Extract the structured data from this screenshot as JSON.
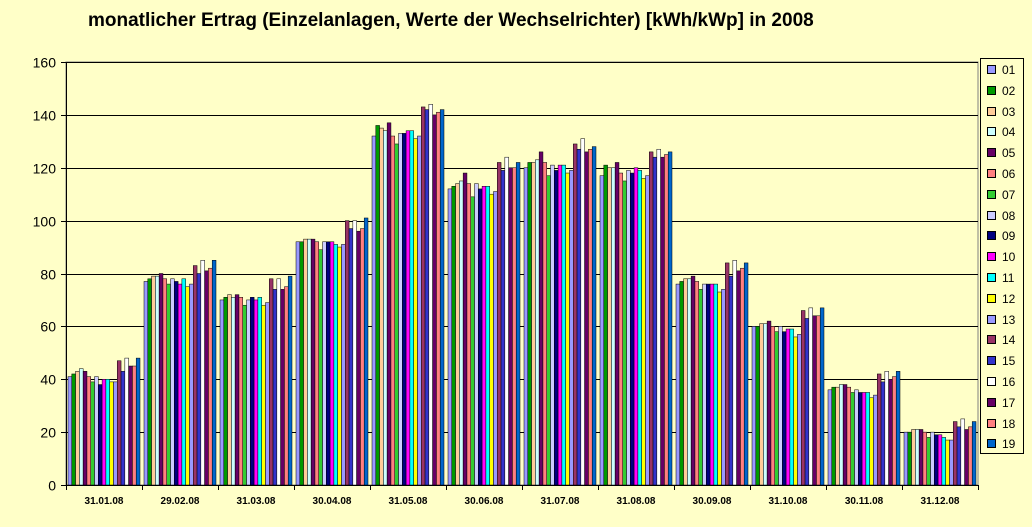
{
  "chart_data": {
    "type": "bar",
    "title": "monatlicher Ertrag (Einzelanlagen, Werte der Wechselrichter) [kWh/kWp] in 2008",
    "xlabel": "",
    "ylabel": "",
    "ylim": [
      0,
      160
    ],
    "yticks": [
      "0",
      "20",
      "40",
      "60",
      "80",
      "100",
      "120",
      "140",
      "160"
    ],
    "grid": true,
    "legend_position": "right",
    "categories": [
      "31.01.08",
      "29.02.08",
      "31.03.08",
      "30.04.08",
      "31.05.08",
      "30.06.08",
      "31.07.08",
      "31.08.08",
      "30.09.08",
      "31.10.08",
      "30.11.08",
      "31.12.08"
    ],
    "series": [
      {
        "name": "01",
        "color": "#9999ff",
        "values": [
          41,
          77,
          70,
          92,
          132,
          112,
          120,
          117,
          76,
          60,
          36,
          20
        ]
      },
      {
        "name": "02",
        "color": "#009900",
        "values": [
          42,
          78,
          71,
          92,
          136,
          113,
          122,
          121,
          77,
          60,
          37,
          20
        ]
      },
      {
        "name": "03",
        "color": "#ffcc99",
        "values": [
          43,
          79,
          72,
          93,
          135,
          114,
          122,
          120,
          78,
          61,
          37,
          21
        ]
      },
      {
        "name": "04",
        "color": "#ccffff",
        "values": [
          44,
          79,
          71,
          93,
          134,
          115,
          123,
          120,
          78,
          61,
          38,
          21
        ]
      },
      {
        "name": "05",
        "color": "#660066",
        "values": [
          43,
          80,
          72,
          93,
          137,
          118,
          126,
          122,
          79,
          62,
          38,
          21
        ]
      },
      {
        "name": "06",
        "color": "#ff8080",
        "values": [
          41,
          78,
          71,
          92,
          132,
          114,
          122,
          118,
          77,
          60,
          37,
          20
        ]
      },
      {
        "name": "07",
        "color": "#33cc33",
        "values": [
          39,
          76,
          68,
          89,
          129,
          109,
          117,
          115,
          74,
          58,
          35,
          18
        ]
      },
      {
        "name": "08",
        "color": "#ccccff",
        "values": [
          41,
          78,
          70,
          92,
          133,
          114,
          121,
          119,
          76,
          60,
          36,
          20
        ]
      },
      {
        "name": "09",
        "color": "#000080",
        "values": [
          38,
          77,
          71,
          92,
          133,
          112,
          119,
          118,
          76,
          58,
          35,
          19
        ]
      },
      {
        "name": "10",
        "color": "#ff00ff",
        "values": [
          40,
          76,
          70,
          92,
          134,
          113,
          121,
          120,
          76,
          59,
          35,
          19
        ]
      },
      {
        "name": "11",
        "color": "#00ffff",
        "values": [
          40,
          78,
          71,
          91,
          134,
          113,
          121,
          119,
          76,
          59,
          35,
          18
        ]
      },
      {
        "name": "12",
        "color": "#ffff00",
        "values": [
          39,
          75,
          68,
          90,
          131,
          110,
          118,
          116,
          73,
          56,
          33,
          17
        ]
      },
      {
        "name": "13",
        "color": "#9999ff",
        "values": [
          39,
          76,
          69,
          91,
          132,
          111,
          119,
          117,
          74,
          57,
          34,
          17
        ]
      },
      {
        "name": "14",
        "color": "#993366",
        "values": [
          47,
          83,
          78,
          100,
          143,
          122,
          129,
          126,
          84,
          66,
          42,
          24
        ]
      },
      {
        "name": "15",
        "color": "#3333cc",
        "values": [
          43,
          80,
          74,
          97,
          142,
          119,
          127,
          124,
          79,
          63,
          39,
          22
        ]
      },
      {
        "name": "16",
        "color": "#ffffff",
        "values": [
          48,
          85,
          78,
          100,
          144,
          124,
          131,
          127,
          85,
          67,
          43,
          25
        ]
      },
      {
        "name": "17",
        "color": "#660066",
        "values": [
          45,
          81,
          74,
          96,
          140,
          120,
          126,
          124,
          81,
          64,
          40,
          21
        ]
      },
      {
        "name": "18",
        "color": "#ff8080",
        "values": [
          45,
          82,
          75,
          97,
          141,
          120,
          127,
          125,
          82,
          64,
          41,
          22
        ]
      },
      {
        "name": "19",
        "color": "#0066cc",
        "values": [
          48,
          85,
          79,
          101,
          142,
          122,
          128,
          126,
          84,
          67,
          43,
          24
        ]
      }
    ]
  }
}
